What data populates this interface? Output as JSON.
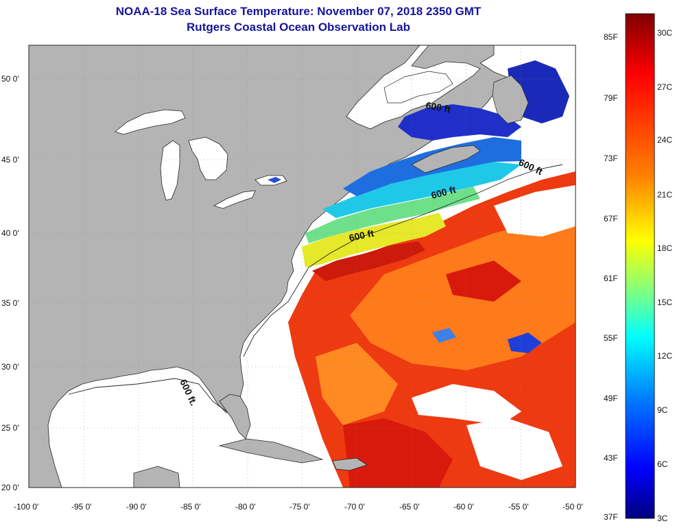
{
  "header": {
    "title": "NOAA-18 Sea Surface Temperature:  November 07, 2018 2350 GMT",
    "subtitle": "Rutgers Coastal Ocean Observation Lab"
  },
  "map": {
    "lon_range": [
      -100,
      -50
    ],
    "lat_range": [
      20,
      52
    ],
    "lon_ticks": [
      "-100 0'",
      "-95 0'",
      "-90 0'",
      "-85 0'",
      "-80 0'",
      "-75 0'",
      "-70 0'",
      "-65 0'",
      "-60 0'",
      "-55 0'",
      "-50 0'"
    ],
    "lat_ticks": [
      "20 0'",
      "25 0'",
      "30 0'",
      "35 0'",
      "40 0'",
      "45 0'",
      "50 0'"
    ],
    "isobath_labels": [
      "600 ft",
      "600 ft",
      "600 ft",
      "600 ft",
      "600 ft."
    ],
    "land_color": "#b4b4b4",
    "nodata_color": "#ffffff"
  },
  "colorbar": {
    "fahrenheit_labels": [
      "85F",
      "79F",
      "73F",
      "67F",
      "61F",
      "55F",
      "49F",
      "43F",
      "37F"
    ],
    "celsius_labels": [
      "30C",
      "27C",
      "24C",
      "21C",
      "18C",
      "15C",
      "12C",
      "9C",
      "6C",
      "3C"
    ],
    "range_c": [
      3,
      31
    ],
    "colormap": [
      "#7f0000",
      "#ff0000",
      "#ff8000",
      "#ffff00",
      "#80ff80",
      "#00ffff",
      "#0080ff",
      "#0000ff",
      "#00007f"
    ]
  }
}
